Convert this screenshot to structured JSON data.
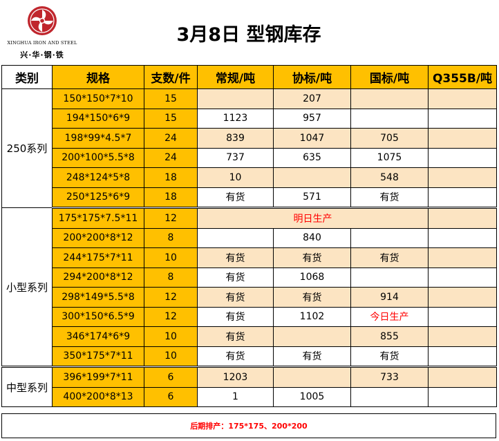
{
  "logo": {
    "name_en": "XINGHUA IRON AND STEEL",
    "name_cn": "兴·华·钢·铁",
    "icon": "pinwheel-logo-icon",
    "color": "#c0262d"
  },
  "title": "3月8日 型钢库存",
  "columns": [
    "类别",
    "规格",
    "支数/件",
    "常规/吨",
    "协标/吨",
    "国标/吨",
    "Q355B/吨"
  ],
  "groups": [
    {
      "category": "250系列",
      "rows": [
        {
          "spec": "150*150*7*10",
          "qty": "15",
          "regular": "",
          "assoc": "207",
          "national": "",
          "q355b": ""
        },
        {
          "spec": "194*150*6*9",
          "qty": "15",
          "regular": "1123",
          "assoc": "957",
          "national": "",
          "q355b": ""
        },
        {
          "spec": "198*99*4.5*7",
          "qty": "24",
          "regular": "839",
          "assoc": "1047",
          "national": "705",
          "q355b": ""
        },
        {
          "spec": "200*100*5.5*8",
          "qty": "24",
          "regular": "737",
          "assoc": "635",
          "national": "1075",
          "q355b": ""
        },
        {
          "spec": "248*124*5*8",
          "qty": "18",
          "regular": "10",
          "assoc": "",
          "national": "548",
          "q355b": ""
        },
        {
          "spec": "250*125*6*9",
          "qty": "18",
          "regular": "有货",
          "assoc": "571",
          "national": "有货",
          "q355b": ""
        }
      ]
    },
    {
      "category": "小型系列",
      "rows": [
        {
          "spec": "175*175*7.5*11",
          "qty": "12",
          "merged_note": "明日生产"
        },
        {
          "spec": "200*200*8*12",
          "qty": "8",
          "regular": "",
          "assoc": "840",
          "national": "",
          "q355b": ""
        },
        {
          "spec": "244*175*7*11",
          "qty": "10",
          "regular": "有货",
          "assoc": "有货",
          "national": "有货",
          "q355b": ""
        },
        {
          "spec": "294*200*8*12",
          "qty": "8",
          "regular": "有货",
          "assoc": "1068",
          "national": "",
          "q355b": ""
        },
        {
          "spec": "298*149*5.5*8",
          "qty": "12",
          "regular": "有货",
          "assoc": "有货",
          "national": "914",
          "q355b": ""
        },
        {
          "spec": "300*150*6.5*9",
          "qty": "12",
          "regular": "有货",
          "assoc": "1102",
          "national": "今日生产",
          "national_red": true,
          "q355b": ""
        },
        {
          "spec": "346*174*6*9",
          "qty": "10",
          "regular": "有货",
          "assoc": "",
          "national": "855",
          "q355b": ""
        },
        {
          "spec": "350*175*7*11",
          "qty": "10",
          "regular": "有货",
          "assoc": "有货",
          "national": "有货",
          "q355b": ""
        }
      ]
    },
    {
      "category": "中型系列",
      "rows": [
        {
          "spec": "396*199*7*11",
          "qty": "6",
          "regular": "1203",
          "assoc": "",
          "national": "733",
          "q355b": ""
        },
        {
          "spec": "400*200*8*13",
          "qty": "6",
          "regular": "1",
          "assoc": "1005",
          "national": "",
          "q355b": ""
        }
      ]
    }
  ],
  "footer": "后期排产：175*175、200*200",
  "colors": {
    "header_fill": "#ffc000",
    "stripe_fill": "#fce4c2",
    "note_red": "#ff0000"
  }
}
